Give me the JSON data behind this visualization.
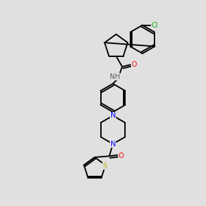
{
  "background_color": "#e0e0e0",
  "bond_color": "#000000",
  "atom_colors": {
    "N": "#0000ff",
    "O": "#ff0000",
    "S": "#bbbb00",
    "Cl": "#00aa00",
    "H": "#555555"
  },
  "figsize": [
    3.0,
    3.0
  ],
  "dpi": 100,
  "lw": 1.4,
  "fontsize": 7.0
}
